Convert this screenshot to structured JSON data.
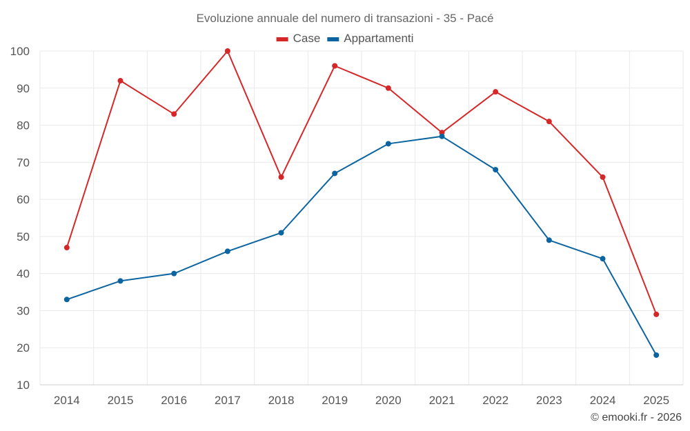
{
  "chart_data": {
    "type": "line",
    "title": "Evoluzione annuale del numero di transazioni - 35 - Pacé",
    "xlabel": "",
    "ylabel": "",
    "categories": [
      "2014",
      "2015",
      "2016",
      "2017",
      "2018",
      "2019",
      "2020",
      "2021",
      "2022",
      "2023",
      "2024",
      "2025"
    ],
    "ylim": [
      10,
      100
    ],
    "yticks": [
      10,
      20,
      30,
      40,
      50,
      60,
      70,
      80,
      90,
      100
    ],
    "grid": true,
    "legend_position": "top-center",
    "series": [
      {
        "name": "Case",
        "color": "#d62728",
        "values": [
          47,
          92,
          83,
          100,
          66,
          96,
          90,
          78,
          89,
          81,
          66,
          29
        ]
      },
      {
        "name": "Appartamenti",
        "color": "#0b64a0",
        "values": [
          33,
          38,
          40,
          46,
          51,
          67,
          75,
          77,
          68,
          49,
          44,
          18
        ]
      }
    ]
  },
  "credit": "© emooki.fr - 2026"
}
